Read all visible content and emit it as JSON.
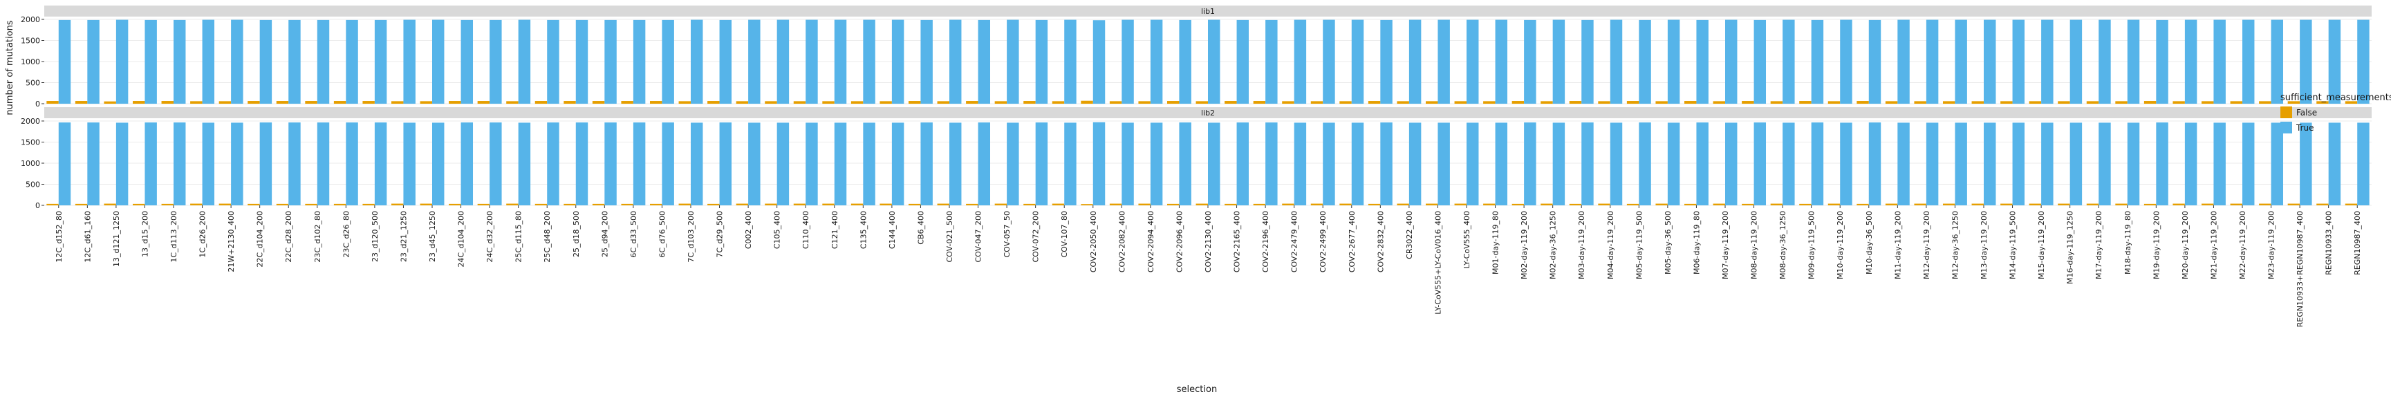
{
  "chart_data": {
    "type": "bar",
    "subtype": "faceted grouped bar",
    "xlabel": "selection",
    "ylabel": "number of mutations",
    "ylim": [
      0,
      2000
    ],
    "yticks": [
      0,
      500,
      1000,
      1500,
      2000
    ],
    "grid": true,
    "legend": {
      "title": "sufficient_measurements",
      "placement": "right",
      "entries": [
        {
          "label": "False",
          "color": "#E69F00"
        },
        {
          "label": "True",
          "color": "#56B4E9"
        }
      ]
    },
    "categories": [
      "12C_d152_80",
      "12C_d61_160",
      "13_d121_1250",
      "13_d15_200",
      "1C_d113_200",
      "1C_d26_200",
      "21W+2130_400",
      "22C_d104_200",
      "22C_d28_200",
      "23C_d102_80",
      "23C_d26_80",
      "23_d120_500",
      "23_d21_1250",
      "23_d45_1250",
      "24C_d104_200",
      "24C_d32_200",
      "25C_d115_80",
      "25C_d48_200",
      "25_d18_500",
      "25_d94_200",
      "6C_d33_500",
      "6C_d76_500",
      "7C_d103_200",
      "7C_d29_500",
      "C002_400",
      "C105_400",
      "C110_400",
      "C121_400",
      "C135_400",
      "C144_400",
      "CB6_400",
      "COV-021_500",
      "COV-047_200",
      "COV-057_50",
      "COV-072_200",
      "COV-107_80",
      "COV2-2050_400",
      "COV2-2082_400",
      "COV2-2094_400",
      "COV2-2096_400",
      "COV2-2130_400",
      "COV2-2165_400",
      "COV2-2196_400",
      "COV2-2479_400",
      "COV2-2499_400",
      "COV2-2677_400",
      "COV2-2832_400",
      "CR3022_400",
      "LY-CoV555+LY-CoV016_400",
      "LY-CoV555_400",
      "M01-day-119_80",
      "M02-day-119_200",
      "M02-day-36_1250",
      "M03-day-119_200",
      "M04-day-119_200",
      "M05-day-119_500",
      "M05-day-36_500",
      "M06-day-119_80",
      "M07-day-119_200",
      "M08-day-119_200",
      "M08-day-36_1250",
      "M09-day-119_500",
      "M10-day-119_200",
      "M10-day-36_500",
      "M11-day-119_200",
      "M12-day-119_200",
      "M12-day-36_1250",
      "M13-day-119_200",
      "M14-day-119_500",
      "M15-day-119_200",
      "M16-day-119_1250",
      "M17-day-119_200",
      "M18-day-119_80",
      "M19-day-119_200",
      "M20-day-119_200",
      "M21-day-119_200",
      "M22-day-119_200",
      "M23-day-119_200",
      "REGN10933+REGN10987_400",
      "REGN10933_400",
      "REGN10987_400"
    ],
    "facets": [
      {
        "name": "lib1",
        "series": [
          {
            "name": "False",
            "values": [
              65,
              65,
              55,
              65,
              65,
              60,
              60,
              65,
              65,
              65,
              65,
              65,
              60,
              60,
              65,
              65,
              60,
              65,
              65,
              65,
              65,
              65,
              60,
              65,
              60,
              60,
              60,
              60,
              60,
              60,
              65,
              60,
              65,
              60,
              65,
              60,
              70,
              60,
              60,
              65,
              60,
              65,
              65,
              60,
              60,
              60,
              65,
              60,
              60,
              60,
              60,
              65,
              60,
              65,
              60,
              65,
              60,
              65,
              60,
              65,
              60,
              65,
              60,
              65,
              60,
              60,
              60,
              60,
              60,
              60,
              60,
              60,
              60,
              65,
              60,
              60,
              60,
              60,
              60,
              60,
              60
            ]
          },
          {
            "name": "True",
            "values": [
              1985,
              1985,
              1990,
              1985,
              1985,
              1990,
              1990,
              1985,
              1985,
              1985,
              1985,
              1985,
              1990,
              1990,
              1985,
              1985,
              1990,
              1985,
              1985,
              1985,
              1985,
              1985,
              1990,
              1985,
              1990,
              1990,
              1990,
              1990,
              1990,
              1990,
              1985,
              1990,
              1985,
              1990,
              1985,
              1990,
              1980,
              1990,
              1990,
              1985,
              1990,
              1985,
              1985,
              1990,
              1990,
              1990,
              1985,
              1990,
              1990,
              1990,
              1990,
              1985,
              1990,
              1985,
              1990,
              1985,
              1990,
              1985,
              1990,
              1985,
              1990,
              1985,
              1990,
              1985,
              1990,
              1990,
              1990,
              1990,
              1990,
              1990,
              1990,
              1990,
              1990,
              1985,
              1990,
              1990,
              1990,
              1990,
              1990,
              1990,
              1990
            ]
          }
        ]
      },
      {
        "name": "lib2",
        "series": [
          {
            "name": "False",
            "values": [
              35,
              35,
              40,
              35,
              35,
              40,
              40,
              35,
              35,
              35,
              35,
              35,
              40,
              40,
              35,
              35,
              40,
              35,
              35,
              35,
              35,
              35,
              40,
              35,
              40,
              40,
              40,
              40,
              40,
              40,
              35,
              40,
              35,
              40,
              35,
              40,
              30,
              40,
              40,
              35,
              40,
              35,
              35,
              40,
              40,
              40,
              35,
              40,
              40,
              40,
              40,
              35,
              40,
              35,
              40,
              35,
              40,
              35,
              40,
              35,
              40,
              35,
              40,
              35,
              40,
              40,
              40,
              40,
              40,
              40,
              40,
              40,
              40,
              35,
              40,
              40,
              40,
              40,
              40,
              40,
              40
            ]
          },
          {
            "name": "True",
            "values": [
              1965,
              1965,
              1960,
              1965,
              1965,
              1960,
              1960,
              1965,
              1965,
              1965,
              1965,
              1965,
              1960,
              1960,
              1965,
              1965,
              1960,
              1965,
              1965,
              1965,
              1965,
              1965,
              1960,
              1965,
              1960,
              1960,
              1960,
              1960,
              1960,
              1960,
              1965,
              1960,
              1965,
              1960,
              1965,
              1960,
              1970,
              1960,
              1960,
              1965,
              1960,
              1965,
              1965,
              1960,
              1960,
              1960,
              1965,
              1960,
              1960,
              1960,
              1960,
              1965,
              1960,
              1965,
              1960,
              1965,
              1960,
              1965,
              1960,
              1965,
              1960,
              1965,
              1960,
              1965,
              1960,
              1960,
              1960,
              1960,
              1960,
              1960,
              1960,
              1960,
              1960,
              1965,
              1960,
              1960,
              1960,
              1960,
              1960,
              1960,
              1960
            ]
          }
        ]
      }
    ]
  }
}
